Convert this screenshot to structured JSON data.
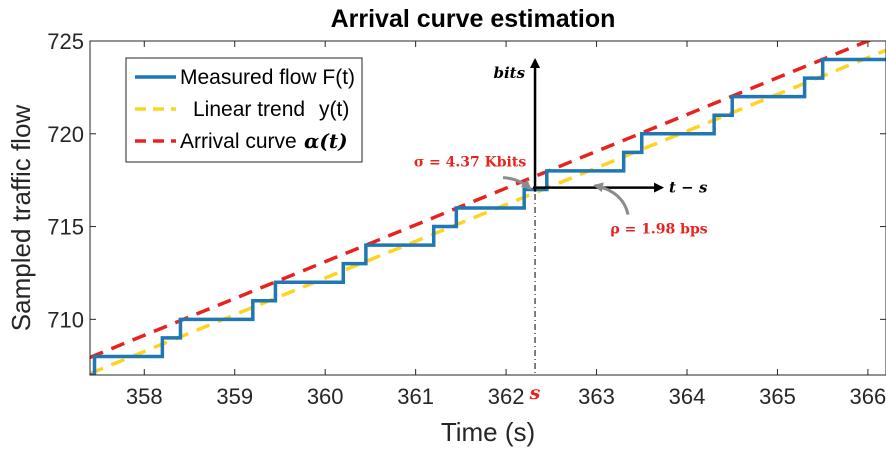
{
  "chart_data": {
    "type": "line",
    "title": "Arrival curve estimation",
    "xlabel": "Time (s)",
    "ylabel": "Sampled traffic flow",
    "xlim": [
      357.4,
      366.2
    ],
    "ylim": [
      707,
      725
    ],
    "xticks": [
      358,
      359,
      360,
      361,
      362,
      363,
      364,
      365,
      366
    ],
    "yticks": [
      710,
      715,
      720,
      725
    ],
    "grid": false,
    "legend_placement": "top-left",
    "series": [
      {
        "name": "Measured flow F(t)",
        "style": "step",
        "color": "#1f77b4",
        "x": [
          357.4,
          357.45,
          358.2,
          358.4,
          359.2,
          359.45,
          360.2,
          360.45,
          361.2,
          361.45,
          362.2,
          362.45,
          363.3,
          363.5,
          364.3,
          364.5,
          365.3,
          365.5,
          366.2
        ],
        "y": [
          707,
          708,
          709,
          710,
          711,
          712,
          713,
          714,
          715,
          716,
          717,
          718,
          719,
          720,
          721,
          722,
          723,
          724,
          724
        ]
      },
      {
        "name": "Linear trend",
        "legend_suffix": "y(t)",
        "style": "dashed",
        "color": "#ffd320",
        "x": [
          357.4,
          366.2
        ],
        "y": [
          707.08,
          724.5
        ]
      },
      {
        "name": "Arrival curve",
        "legend_suffix": "α(t)",
        "style": "dashed",
        "color": "#e8231f",
        "x": [
          357.4,
          366.2
        ],
        "y": [
          707.95,
          725.4
        ]
      }
    ],
    "annotations": {
      "s_time": 362.32,
      "s_label": "s",
      "origin_flow": 717.1,
      "bits_label": "bits",
      "time_axis_label": "t − s",
      "sigma_label": "σ = 4.37 Kbits",
      "rho_label": "ρ = 1.98 bps"
    }
  }
}
